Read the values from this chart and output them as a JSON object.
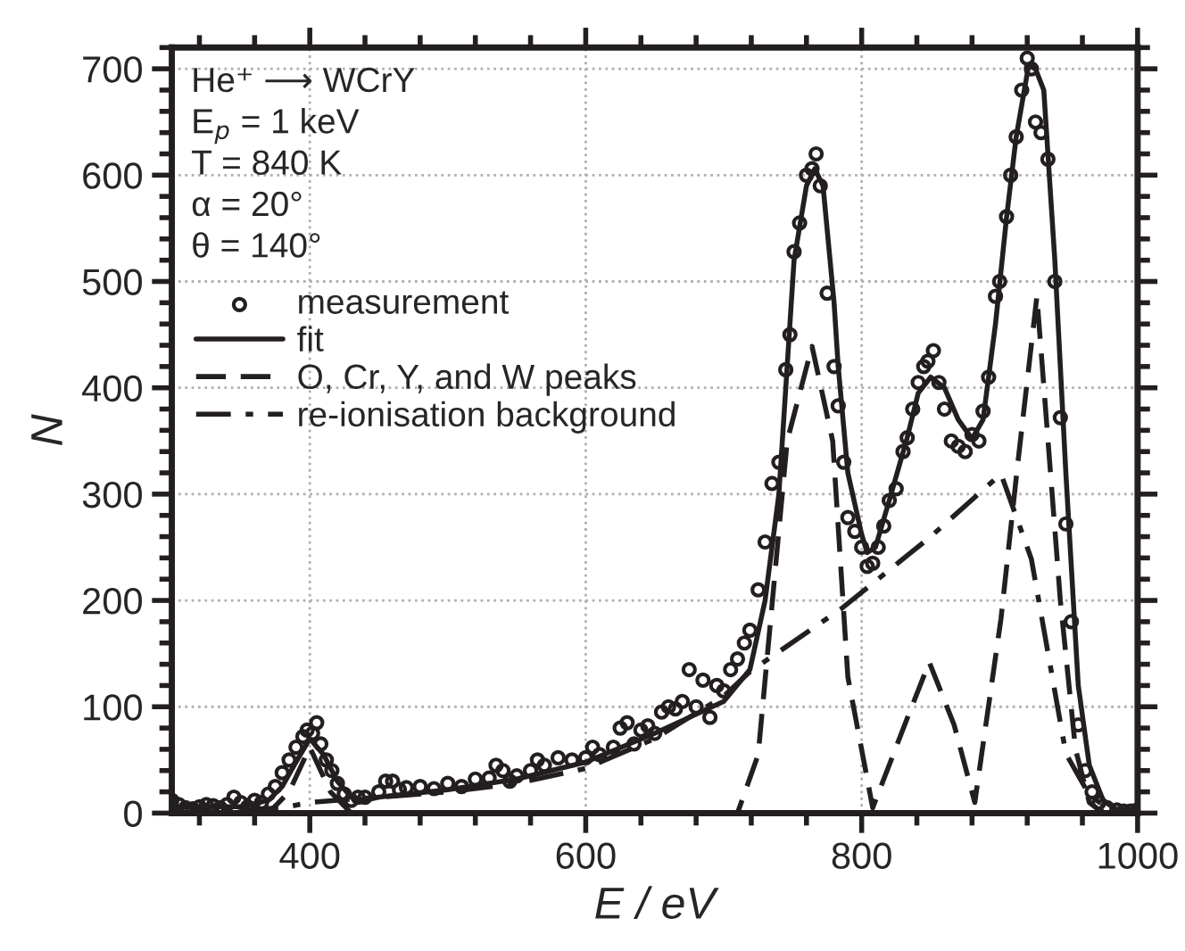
{
  "chart_data": {
    "type": "line",
    "xlabel": "E / eV",
    "ylabel": "N",
    "annotations": [
      "He⁺ ⟶ WCrY",
      "E$_{p}$ = 1 keV",
      "T = 840 K",
      "α = 20°",
      "θ = 140°"
    ],
    "xlim": [
      300,
      1000
    ],
    "ylim": [
      0,
      720
    ],
    "xticks": [
      {
        "value": 320,
        "label": null
      },
      {
        "value": 360,
        "label": null
      },
      400,
      {
        "value": 440,
        "label": null
      },
      {
        "value": 480,
        "label": null
      },
      {
        "value": 520,
        "label": null
      },
      {
        "value": 560,
        "label": null
      },
      600,
      {
        "value": 640,
        "label": null
      },
      {
        "value": 680,
        "label": null
      },
      {
        "value": 720,
        "label": null
      },
      {
        "value": 760,
        "label": null
      },
      800,
      {
        "value": 840,
        "label": null
      },
      {
        "value": 880,
        "label": null
      },
      {
        "value": 920,
        "label": null
      },
      {
        "value": 960,
        "label": null
      },
      1000
    ],
    "yticks": [
      0,
      {
        "value": 20,
        "label": null
      },
      {
        "value": 40,
        "label": null
      },
      {
        "value": 60,
        "label": null
      },
      {
        "value": 80,
        "label": null
      },
      100,
      {
        "value": 120,
        "label": null
      },
      {
        "value": 140,
        "label": null
      },
      {
        "value": 160,
        "label": null
      },
      {
        "value": 180,
        "label": null
      },
      200,
      {
        "value": 220,
        "label": null
      },
      {
        "value": 240,
        "label": null
      },
      {
        "value": 260,
        "label": null
      },
      {
        "value": 280,
        "label": null
      },
      300,
      {
        "value": 320,
        "label": null
      },
      {
        "value": 340,
        "label": null
      },
      {
        "value": 360,
        "label": null
      },
      {
        "value": 380,
        "label": null
      },
      400,
      {
        "value": 420,
        "label": null
      },
      {
        "value": 440,
        "label": null
      },
      {
        "value": 460,
        "label": null
      },
      {
        "value": 480,
        "label": null
      },
      500,
      {
        "value": 520,
        "label": null
      },
      {
        "value": 540,
        "label": null
      },
      {
        "value": 560,
        "label": null
      },
      {
        "value": 580,
        "label": null
      },
      600,
      {
        "value": 620,
        "label": null
      },
      {
        "value": 640,
        "label": null
      },
      {
        "value": 660,
        "label": null
      },
      {
        "value": 680,
        "label": null
      },
      700,
      {
        "value": 720,
        "label": null
      }
    ],
    "grid": true,
    "legend": "top left",
    "series": [
      {
        "name": "measurement",
        "type": "scatter",
        "marker": "circle",
        "color": "#231f20",
        "x": [
          300,
          305,
          310,
          315,
          320,
          325,
          330,
          335,
          340,
          345,
          350,
          355,
          360,
          365,
          370,
          375,
          380,
          385,
          390,
          395,
          398,
          402,
          405,
          408,
          412,
          416,
          420,
          425,
          430,
          435,
          440,
          450,
          455,
          460,
          465,
          470,
          480,
          490,
          500,
          510,
          520,
          530,
          535,
          540,
          545,
          550,
          560,
          565,
          570,
          580,
          590,
          600,
          605,
          610,
          620,
          625,
          630,
          635,
          640,
          645,
          650,
          655,
          660,
          665,
          670,
          675,
          680,
          685,
          690,
          695,
          700,
          705,
          710,
          715,
          719,
          725,
          730,
          735,
          740,
          745,
          748,
          751,
          755,
          760,
          764,
          767,
          770,
          775,
          780,
          783,
          787,
          790,
          795,
          800,
          804,
          808,
          812,
          816,
          820,
          825,
          830,
          833,
          837,
          841,
          845,
          848,
          852,
          856,
          860,
          865,
          870,
          875,
          880,
          885,
          888,
          892,
          897,
          900,
          905,
          908,
          912,
          916,
          920,
          923,
          926,
          930,
          935,
          940,
          944,
          948,
          952,
          957,
          962,
          967,
          972,
          978,
          985,
          990,
          995,
          1000
        ],
        "values": [
          12,
          8,
          5,
          4,
          6,
          8,
          7,
          5,
          8,
          15,
          10,
          6,
          12,
          10,
          18,
          25,
          38,
          50,
          62,
          72,
          78,
          75,
          85,
          65,
          50,
          40,
          28,
          18,
          12,
          15,
          15,
          20,
          30,
          30,
          22,
          24,
          25,
          23,
          28,
          25,
          32,
          33,
          45,
          40,
          30,
          35,
          40,
          50,
          45,
          52,
          50,
          52,
          62,
          55,
          62,
          80,
          85,
          65,
          78,
          82,
          75,
          95,
          100,
          98,
          105,
          135,
          100,
          125,
          90,
          120,
          115,
          135,
          145,
          160,
          172,
          210,
          255,
          310,
          330,
          417,
          450,
          528,
          555,
          600,
          606,
          620,
          590,
          489,
          420,
          383,
          330,
          278,
          265,
          250,
          232,
          235,
          250,
          270,
          294,
          305,
          340,
          353,
          380,
          405,
          420,
          425,
          435,
          405,
          380,
          350,
          345,
          340,
          356,
          350,
          378,
          410,
          486,
          500,
          561,
          600,
          636,
          680,
          710,
          700,
          650,
          640,
          615,
          500,
          372,
          272,
          180,
          83,
          40,
          20,
          10,
          5,
          3,
          2,
          2,
          3
        ]
      },
      {
        "name": "fit",
        "line_style": "solid",
        "color": "#231f20",
        "x": [
          300,
          350,
          370,
          380,
          390,
          400,
          410,
          420,
          430,
          440,
          450,
          500,
          550,
          600,
          650,
          700,
          719,
          730,
          740,
          745,
          751,
          760,
          766,
          772,
          780,
          783,
          790,
          800,
          804,
          810,
          820,
          833,
          841,
          850,
          860,
          870,
          880,
          888,
          897,
          905,
          912,
          921,
          926,
          932,
          940,
          944,
          948,
          957,
          965,
          975,
          985,
          1000
        ],
        "values": [
          6,
          6,
          12,
          25,
          48,
          70,
          55,
          30,
          15,
          12,
          15,
          22,
          32,
          48,
          75,
          105,
          135,
          200,
          300,
          400,
          520,
          590,
          606,
          590,
          480,
          420,
          320,
          262,
          245,
          250,
          294,
          353,
          395,
          410,
          400,
          370,
          352,
          370,
          460,
          560,
          636,
          703,
          700,
          680,
          520,
          420,
          320,
          120,
          45,
          12,
          3,
          2
        ]
      },
      {
        "name": "O, Cr, Y, and W peaks",
        "line_style": "dashed",
        "color": "#231f20",
        "x": [
          300,
          370,
          385,
          400,
          415,
          430,
          710,
          725,
          746,
          764,
          779,
          790,
          808,
          833,
          849,
          867,
          882,
          901,
          913,
          927,
          944,
          955,
          965,
          975,
          1000
        ],
        "values": [
          0,
          0,
          20,
          62,
          20,
          0,
          0,
          55,
          350,
          439,
          350,
          128,
          5,
          89,
          142,
          83,
          10,
          183,
          327,
          486,
          200,
          60,
          10,
          0,
          0
        ]
      },
      {
        "name": "re-ionisation background",
        "line_style": "dashdot",
        "color": "#231f20",
        "x": [
          300,
          380,
          400,
          450,
          500,
          550,
          600,
          650,
          700,
          719,
          785,
          850,
          901,
          923,
          948,
          965,
          980,
          1000
        ],
        "values": [
          0,
          5,
          10,
          15,
          20,
          28,
          42,
          70,
          110,
          133,
          192,
          260,
          319,
          239,
          56,
          17,
          3,
          0
        ]
      }
    ]
  }
}
